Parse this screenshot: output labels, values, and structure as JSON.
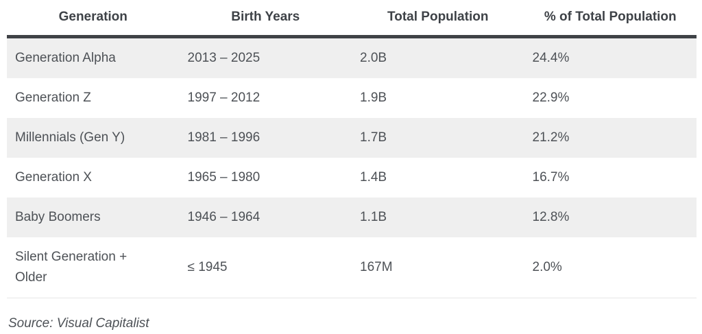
{
  "table": {
    "columns": [
      "Generation",
      "Birth Years",
      "Total Population",
      "% of Total Population"
    ],
    "rows": [
      {
        "generation": "Generation Alpha",
        "birth_years": "2013 – 2025",
        "total_population": "2.0B",
        "pct_of_total": "24.4%"
      },
      {
        "generation": "Generation Z",
        "birth_years": "1997 – 2012",
        "total_population": "1.9B",
        "pct_of_total": "22.9%"
      },
      {
        "generation": "Millennials (Gen Y)",
        "birth_years": "1981 – 1996",
        "total_population": "1.7B",
        "pct_of_total": "21.2%"
      },
      {
        "generation": "Generation X",
        "birth_years": "1965 – 1980",
        "total_population": "1.4B",
        "pct_of_total": "16.7%"
      },
      {
        "generation": "Baby Boomers",
        "birth_years": "1946 – 1964",
        "total_population": "1.1B",
        "pct_of_total": "12.8%"
      },
      {
        "generation": "Silent Generation + Older",
        "birth_years": "≤ 1945",
        "total_population": "167M",
        "pct_of_total": "2.0%"
      }
    ]
  },
  "source": "Source: Visual Capitalist",
  "colors": {
    "stripe_row_bg": "#efefef",
    "header_border": "#3f4246",
    "header_text": "#3e4247",
    "body_text": "#4d5156",
    "divider": "#e6e6e6",
    "page_bg": "#ffffff"
  },
  "chart_data": {
    "type": "table",
    "title": "",
    "columns": [
      "Generation",
      "Birth Years",
      "Total Population",
      "% of Total Population"
    ],
    "categories": [
      "Generation Alpha",
      "Generation Z",
      "Millennials (Gen Y)",
      "Generation X",
      "Baby Boomers",
      "Silent Generation + Older"
    ],
    "birth_years": [
      "2013 – 2025",
      "1997 – 2012",
      "1981 – 1996",
      "1965 – 1980",
      "1946 – 1964",
      "≤ 1945"
    ],
    "total_population_billions": [
      2.0,
      1.9,
      1.7,
      1.4,
      1.1,
      0.167
    ],
    "total_population_labels": [
      "2.0B",
      "1.9B",
      "1.7B",
      "1.4B",
      "1.1B",
      "167M"
    ],
    "pct_of_total": [
      24.4,
      22.9,
      21.2,
      16.7,
      12.8,
      2.0
    ],
    "source": "Source: Visual Capitalist"
  }
}
